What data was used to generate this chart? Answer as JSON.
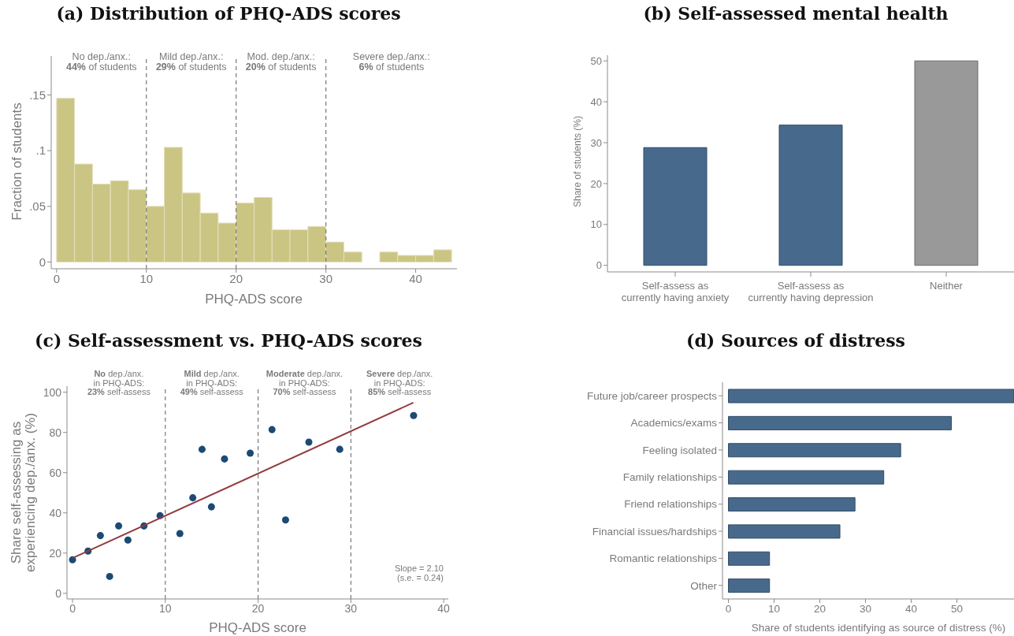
{
  "chart_data": [
    {
      "type": "histogram",
      "title": "(a) Distribution of PHQ-ADS scores",
      "xlabel": "PHQ-ADS score",
      "ylabel": "Fraction of students",
      "bins": [
        0,
        2,
        4,
        6,
        8,
        10,
        12,
        14,
        16,
        18,
        20,
        22,
        24,
        26,
        28,
        30,
        32,
        34,
        36,
        38,
        40,
        42,
        44
      ],
      "values": [
        0.147,
        0.088,
        0.07,
        0.073,
        0.065,
        0.05,
        0.103,
        0.062,
        0.044,
        0.035,
        0.053,
        0.058,
        0.029,
        0.029,
        0.032,
        0.018,
        0.009,
        0,
        0.009,
        0.006,
        0.006,
        0.011
      ],
      "color": "#cbc584",
      "xlim": [
        -0.6,
        44.6
      ],
      "ylim": [
        -0.006,
        0.185
      ],
      "xticks": [
        0,
        10,
        20,
        30,
        40
      ],
      "yticks": [
        0,
        {
          "value": 0.05,
          "label": ".05"
        },
        {
          "value": 0.1,
          "label": ".1"
        },
        {
          "value": 0.15,
          "label": ".15"
        }
      ],
      "ref_lines": [
        {
          "axis": "x",
          "value": 10,
          "color": "#777777",
          "line_style": "dashed"
        },
        {
          "axis": "x",
          "value": 20,
          "color": "#777777",
          "line_style": "dashed"
        },
        {
          "axis": "x",
          "value": 30,
          "color": "#777777",
          "line_style": "dashed"
        }
      ],
      "annotations": [
        "No dep./anx.:\n44% of students",
        "Mild dep./anx.:\n29% of students",
        "Mod. dep./anx.:\n20% of students",
        "Severe dep./anx.:\n6% of students"
      ]
    },
    {
      "type": "bar",
      "title": "(b) Self-assessed mental health",
      "ylabel": "Share of students (%)",
      "categories": [
        "Self-assess as\ncurrently having anxiety",
        "Self-assess as\ncurrently having depression",
        "Neither"
      ],
      "values": [
        28.8,
        34.3,
        50
      ],
      "colors": [
        "#476a8c",
        "#476a8c",
        "#999999"
      ],
      "ylim": [
        -1.6,
        51.4
      ],
      "yticks": [
        0,
        10,
        20,
        30,
        40,
        50
      ]
    },
    {
      "type": "scatter",
      "title": "(c) Self-assessment vs. PHQ-ADS scores",
      "xlabel": "PHQ-ADS score",
      "ylabel": "Share self-assessing as\nexperiencing dep./anx. (%)",
      "series": [
        {
          "type": "scatter",
          "color": "#1c4a75",
          "marker": "circle",
          "x": [
            0,
            1.67,
            3.0,
            4.0,
            4.97,
            5.97,
            7.7,
            9.43,
            11.57,
            12.96,
            13.96,
            14.97,
            16.38,
            19.15,
            21.5,
            22.96,
            25.47,
            28.8,
            36.76
          ],
          "values": [
            16.7,
            21.0,
            28.7,
            8.4,
            33.5,
            26.5,
            33.5,
            38.6,
            29.7,
            47.5,
            71.6,
            43.0,
            66.8,
            69.7,
            81.4,
            36.5,
            75.2,
            71.6,
            88.4
          ]
        },
        {
          "type": "line",
          "color": "#923b3f",
          "marker": "none",
          "x": [
            0,
            36.73
          ],
          "values": [
            17.5,
            94.8
          ]
        }
      ],
      "xlim": [
        -0.6,
        40.5
      ],
      "ylim": [
        -2.8,
        103
      ],
      "xticks": [
        0,
        10,
        20,
        30,
        40
      ],
      "yticks": [
        0,
        20,
        40,
        60,
        80,
        100
      ],
      "ref_lines": [
        {
          "axis": "x",
          "value": 10,
          "color": "#777777",
          "line_style": "dashed"
        },
        {
          "axis": "x",
          "value": 20,
          "color": "#777777",
          "line_style": "dashed"
        },
        {
          "axis": "x",
          "value": 30,
          "color": "#777777",
          "line_style": "dashed"
        }
      ],
      "annotations": [
        "No dep./anx.\nin PHQ-ADS:\n23% self-assess",
        "Mild dep./anx.\nin PHQ-ADS:\n49% self-assess",
        "Moderate dep./anx.\nin PHQ-ADS:\n70% self-assess",
        "Severe dep./anx.\nin PHQ-ADS:\n85% self-assess",
        "Slope = 2.10\n(s.e. = 0.24)"
      ]
    },
    {
      "type": "bar",
      "orientation": "horizontal",
      "title": "(d) Sources of distress",
      "xlabel": "Share of students identifying as source of distress (%)",
      "categories": [
        "Future job/career prospects",
        "Academics/exams",
        "Feeling isolated",
        "Family relationships",
        "Friend relationships",
        "Financial issues/hardships",
        "Romantic relationships",
        "Other"
      ],
      "values": [
        62.5,
        48.8,
        37.7,
        34.0,
        27.7,
        24.4,
        9.0,
        9.0
      ],
      "color": "#476a8c",
      "xlim": [
        -1.3,
        62.5
      ],
      "xticks": [
        0,
        10,
        20,
        30,
        40,
        50
      ]
    }
  ]
}
